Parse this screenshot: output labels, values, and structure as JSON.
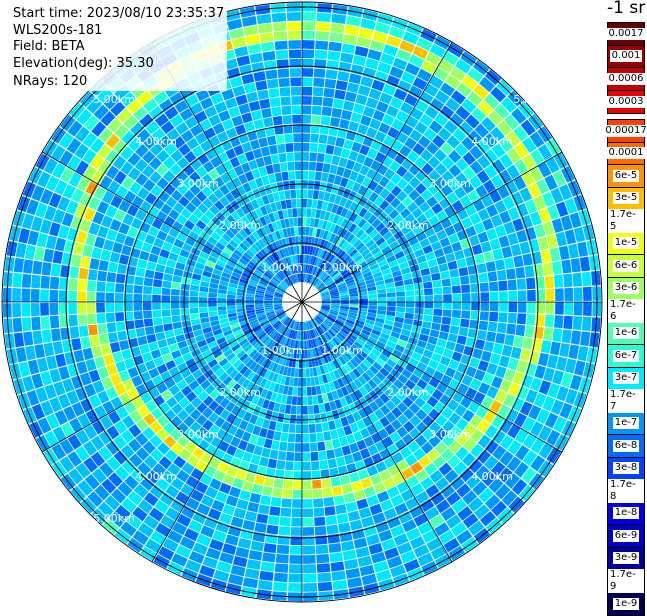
{
  "info": {
    "start_time": "Start time: 2023/08/10 23:35:37",
    "device": "WLS200s-181",
    "field": "Field: BETA",
    "elevation": "Elevation(deg): 35.30",
    "nrays": "NRays: 120"
  },
  "colorbar": {
    "unit": "-1 sr",
    "upper": [
      "0.0017",
      "0.001",
      "0.0006",
      "0.0003"
    ],
    "upper_colors": [
      "#6b0000",
      "#980000",
      "#c40000",
      "#ee0000"
    ],
    "lower": [
      "0.00017",
      "0.0001",
      "6e-5",
      "3e-5",
      "1.7e-5",
      "1e-5",
      "6e-6",
      "3e-6",
      "1.7e-6",
      "1e-6",
      "6e-7",
      "3e-7",
      "1.7e-7",
      "1e-7",
      "6e-8",
      "3e-8",
      "1.7e-8",
      "1e-8",
      "6e-9",
      "3e-9",
      "1.7e-9",
      "1e-9"
    ],
    "lower_colors": [
      "#ff4000",
      "#ff6a00",
      "#ff9400",
      "#ffbd00",
      "#ffe600",
      "#f2ff0c",
      "#c8ff36",
      "#9fff5f",
      "#76ff89",
      "#4dffb2",
      "#24ffdb",
      "#00eaff",
      "#00c0ff",
      "#0096ff",
      "#006cff",
      "#0042ff",
      "#0018ff",
      "#0000ee",
      "#0000c4",
      "#00009a",
      "#000070",
      "#000050"
    ]
  },
  "ring_labels": {
    "r1": "1.00km",
    "r2": "2.00km",
    "r3": "3.00km",
    "r4": "4.00km",
    "r5": "5.00km"
  },
  "scan": {
    "nrays": 120,
    "ring_units": [
      "1.00km",
      "2.00km",
      "3.00km",
      "4.00km",
      "5.00km"
    ]
  }
}
